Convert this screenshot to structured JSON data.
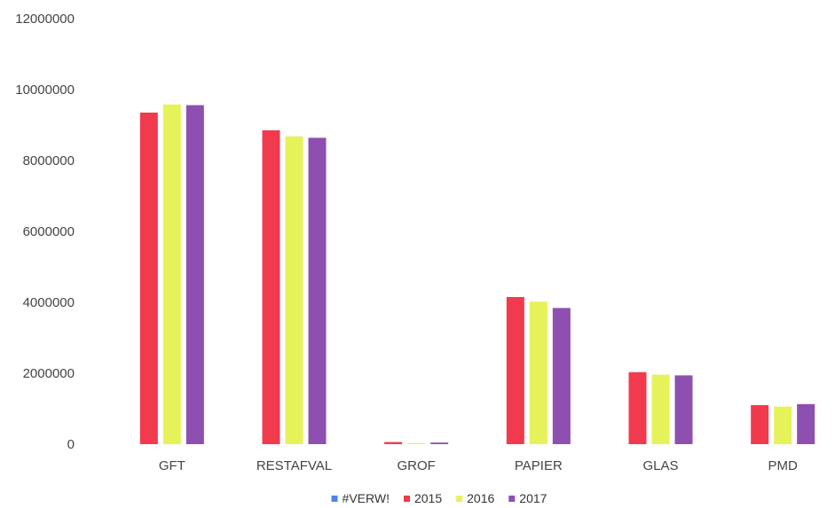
{
  "chart_data": {
    "type": "bar",
    "title": "",
    "xlabel": "",
    "ylabel": "",
    "ylim": [
      0,
      12000000
    ],
    "yticks": [
      0,
      2000000,
      4000000,
      6000000,
      8000000,
      10000000,
      12000000
    ],
    "ytick_labels": [
      "0",
      "2000000",
      "4000000",
      "6000000",
      "8000000",
      "10000000",
      "12000000"
    ],
    "grid": false,
    "legend_position": "bottom",
    "categories": [
      "GFT",
      "RESTAFVAL",
      "GROF",
      "PAPIER",
      "GLAS",
      "PMD"
    ],
    "legend": [
      {
        "name": "#VERW!",
        "color": "#4a86e8"
      },
      {
        "name": "2015",
        "color": "#f23a4e"
      },
      {
        "name": "2016",
        "color": "#e6f25a"
      },
      {
        "name": "2017",
        "color": "#8d4fb0"
      }
    ],
    "series": [
      {
        "name": "2015",
        "color": "#f23a4e",
        "values": [
          9350000,
          8850000,
          60000,
          4150000,
          2030000,
          1100000
        ]
      },
      {
        "name": "2016",
        "color": "#e6f25a",
        "values": [
          9580000,
          8680000,
          30000,
          4020000,
          1960000,
          1060000
        ]
      },
      {
        "name": "2017",
        "color": "#8d4fb0",
        "values": [
          9560000,
          8640000,
          45000,
          3840000,
          1940000,
          1130000
        ]
      }
    ]
  }
}
